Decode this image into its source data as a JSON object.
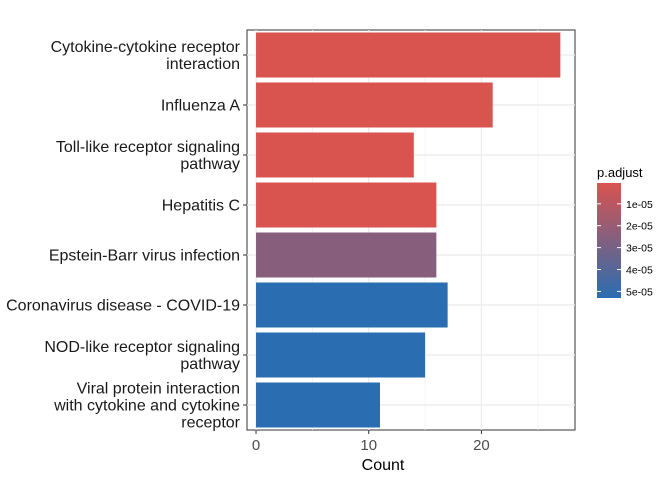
{
  "chart_data": {
    "type": "bar",
    "orientation": "horizontal",
    "categories": [
      "Cytokine-cytokine receptor interaction",
      "Influenza A",
      "Toll-like receptor signaling pathway",
      "Hepatitis C",
      "Epstein-Barr virus infection",
      "Coronavirus disease - COVID-19",
      "NOD-like receptor signaling pathway",
      "Viral protein interaction with cytokine and cytokine receptor"
    ],
    "category_lines": [
      [
        "Cytokine-cytokine receptor",
        "interaction"
      ],
      [
        "Influenza A"
      ],
      [
        "Toll-like receptor signaling",
        "pathway"
      ],
      [
        "Hepatitis C"
      ],
      [
        "Epstein-Barr virus infection"
      ],
      [
        "Coronavirus disease - COVID-19"
      ],
      [
        "NOD-like receptor signaling",
        "pathway"
      ],
      [
        "Viral protein interaction",
        "with cytokine and cytokine",
        "receptor"
      ]
    ],
    "values": [
      27,
      21,
      14,
      16,
      16,
      17,
      15,
      11
    ],
    "p_adjust": [
      5e-07,
      5e-07,
      5e-07,
      5e-07,
      2.5e-05,
      5.3e-05,
      5.3e-05,
      5.3e-05
    ],
    "xlabel": "Count",
    "ylabel": "",
    "xlim": [
      -0.8,
      28.3
    ],
    "xticks": [
      0,
      10,
      20
    ],
    "grid": true,
    "legend": {
      "title": "p.adjust",
      "position": "right",
      "low_color": "#d9534f",
      "high_color": "#2a6db0",
      "range": [
        5e-07,
        5.3e-05
      ],
      "ticks": [
        1e-05,
        2e-05,
        3e-05,
        4e-05,
        5e-05
      ],
      "tick_labels": [
        "1e-05",
        "2e-05",
        "3e-05",
        "4e-05",
        "5e-05"
      ]
    }
  }
}
